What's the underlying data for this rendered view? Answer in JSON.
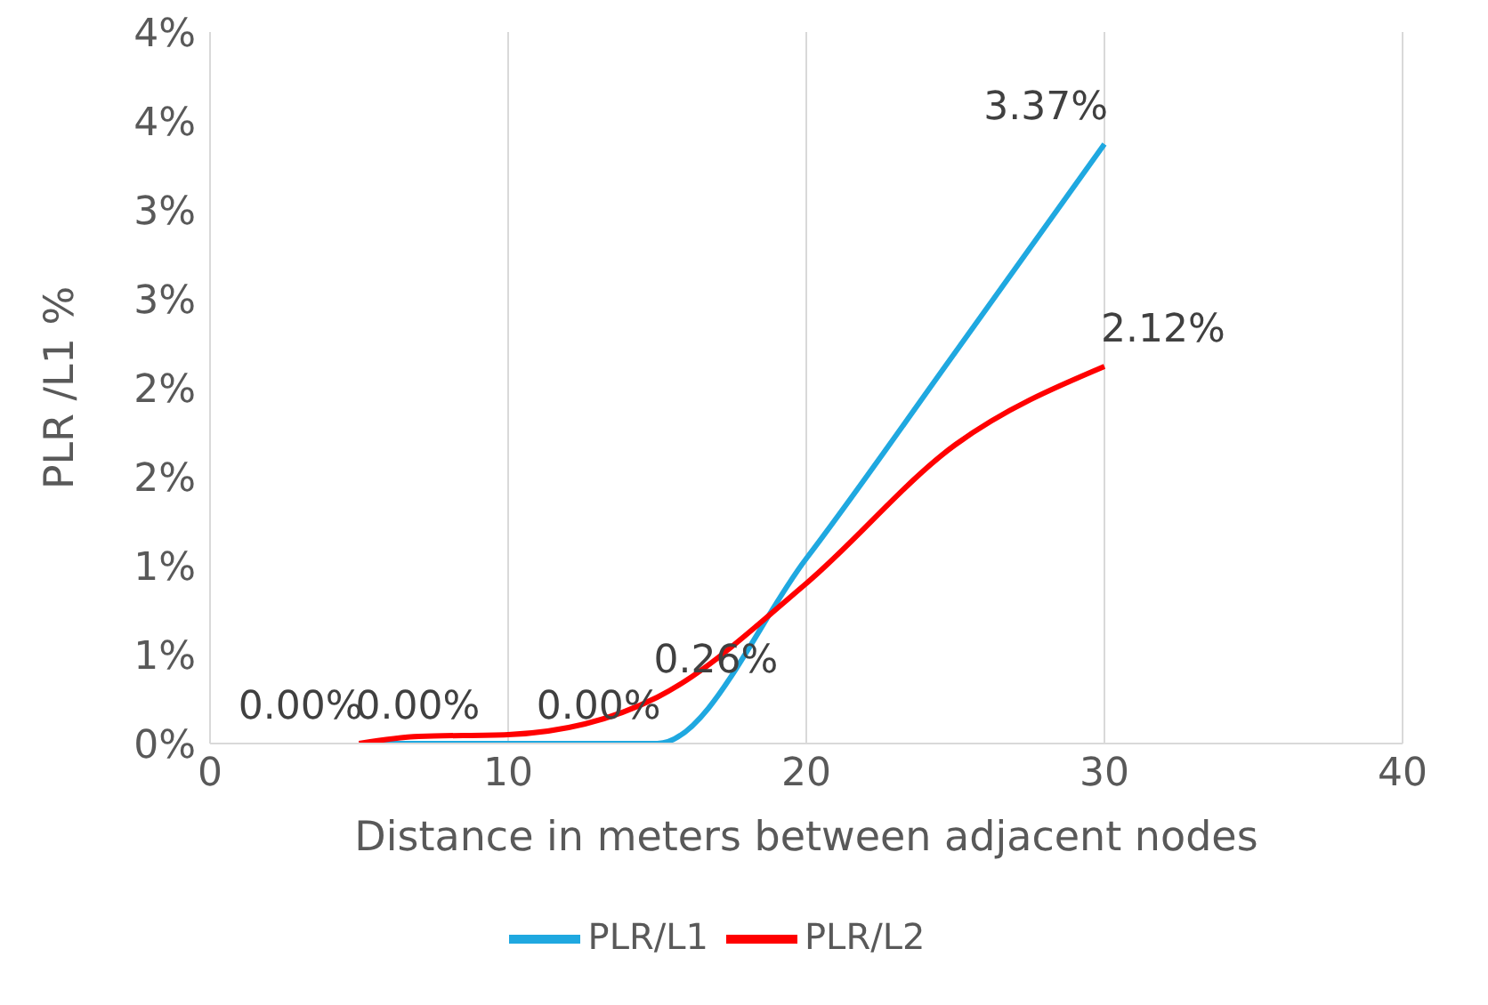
{
  "chart_data": {
    "type": "line",
    "xlabel": "Distance in meters between adjacent nodes",
    "ylabel": "PLR /L1 %",
    "xlim": [
      0,
      40
    ],
    "xticks": [
      0,
      10,
      20,
      30,
      40
    ],
    "ylim": [
      0,
      4
    ],
    "yticks": [
      {
        "value": 0,
        "label": "0%"
      },
      {
        "value": 0.5,
        "label": "1%"
      },
      {
        "value": 1,
        "label": "1%"
      },
      {
        "value": 1.5,
        "label": "2%"
      },
      {
        "value": 2,
        "label": "2%"
      },
      {
        "value": 2.5,
        "label": "3%"
      },
      {
        "value": 3,
        "label": "3%"
      },
      {
        "value": 3.5,
        "label": "4%"
      },
      {
        "value": 4,
        "label": "4%"
      }
    ],
    "grid": "x",
    "legend": "bottom",
    "marker": "none",
    "line_style": "solid",
    "series": [
      {
        "name": "PLR/L1",
        "color": "#1fa8e0",
        "x": [
          5,
          15,
          20,
          25,
          30
        ],
        "values": [
          0,
          0,
          1.04,
          2.2,
          3.37
        ],
        "value_labels": [
          "0.00%",
          "0.00%",
          null,
          null,
          "3.37%"
        ]
      },
      {
        "name": "PLR/L2",
        "color": "#ff0000",
        "x": [
          5,
          7,
          10,
          15,
          20,
          25,
          30
        ],
        "values": [
          0,
          0.04,
          0.05,
          0.26,
          0.9,
          1.68,
          2.12
        ],
        "value_labels": [
          "0.00%",
          null,
          null,
          "0.26%",
          null,
          null,
          "2.12%"
        ]
      }
    ]
  }
}
